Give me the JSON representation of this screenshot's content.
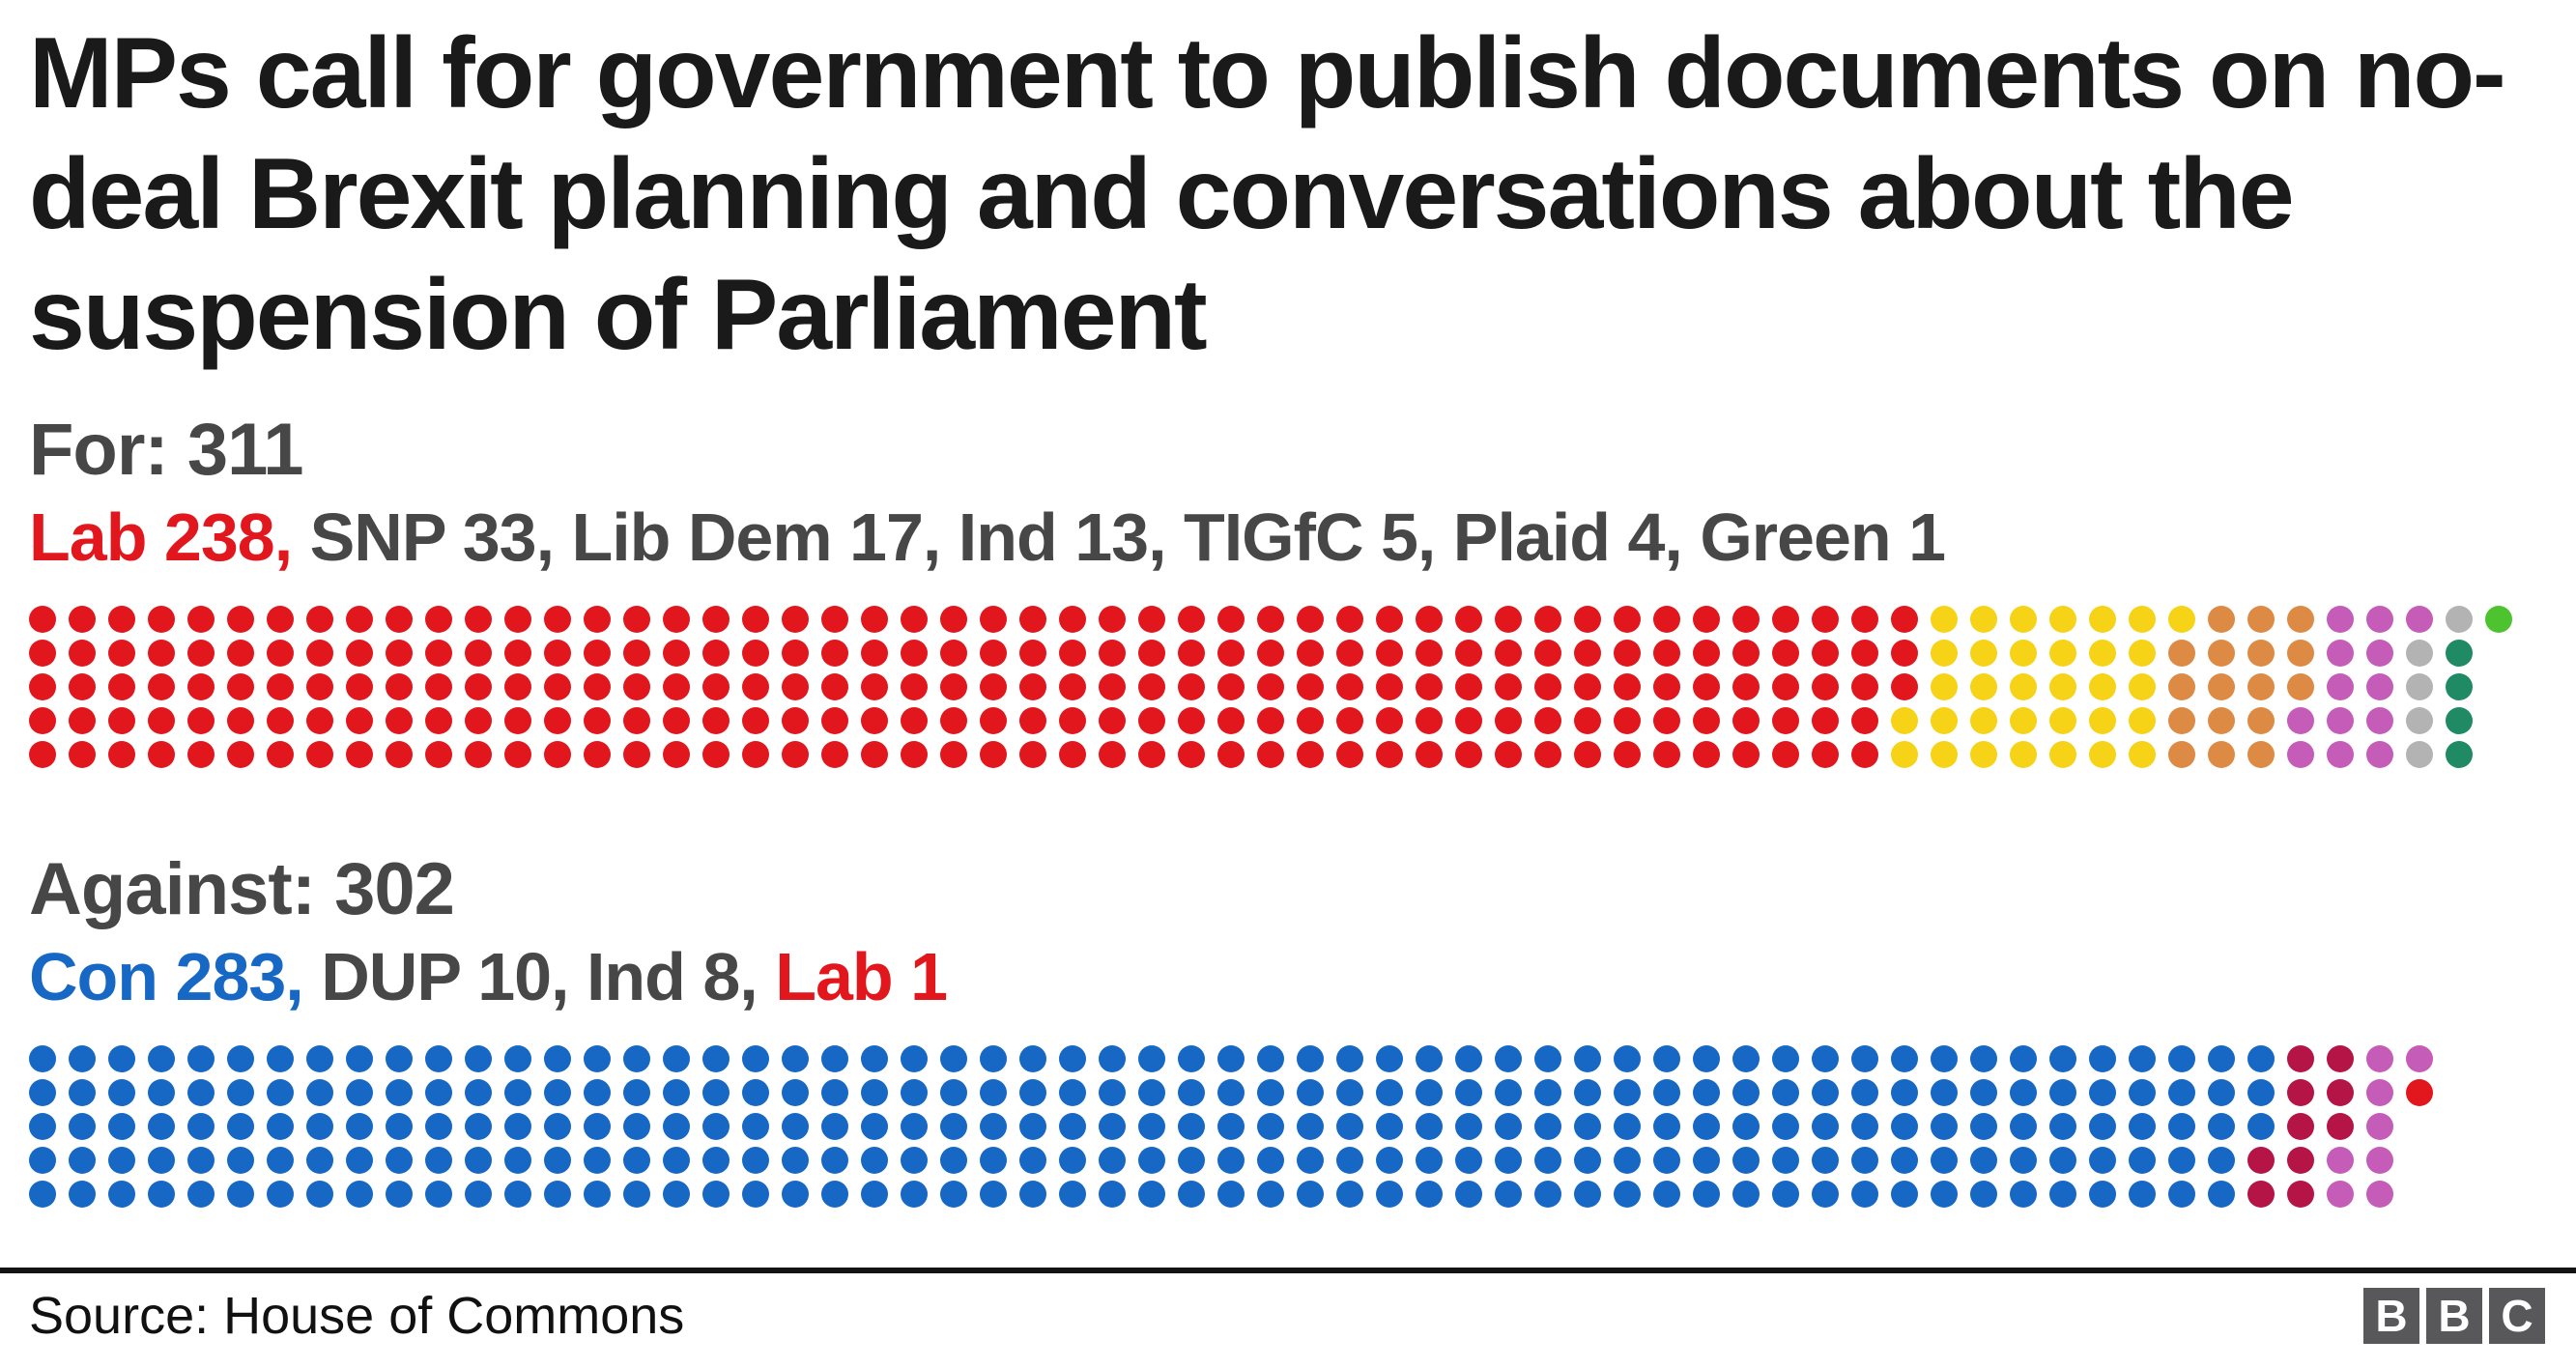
{
  "title": "MPs call for government to publish documents on no-deal Brexit planning and conversations about the suspension of Parliament",
  "sections": [
    {
      "heading": "For: 311",
      "breakdown": [
        {
          "text": "Lab 238,",
          "color": "#e2171d"
        },
        {
          "text": " SNP 33, Lib Dem 17, Ind 13, TIGfC 5, Plaid 4, Green 1",
          "color": "#474747"
        }
      ],
      "parties": [
        {
          "name": "Lab",
          "count": 238,
          "color": "#e2171d"
        },
        {
          "name": "SNP",
          "count": 33,
          "color": "#f6d316"
        },
        {
          "name": "Lib Dem",
          "count": 17,
          "color": "#dd8a45"
        },
        {
          "name": "Ind",
          "count": 13,
          "color": "#c45cb8"
        },
        {
          "name": "TIGfC",
          "count": 5,
          "color": "#b3b3b3"
        },
        {
          "name": "Plaid",
          "count": 4,
          "color": "#1f8a63"
        },
        {
          "name": "Green",
          "count": 1,
          "color": "#4cc32f"
        }
      ]
    },
    {
      "heading": "Against: 302",
      "breakdown": [
        {
          "text": "Con 283,",
          "color": "#1768c5"
        },
        {
          "text": " DUP 10, Ind 8, ",
          "color": "#474747"
        },
        {
          "text": "Lab 1",
          "color": "#e2171d"
        }
      ],
      "parties": [
        {
          "name": "Con",
          "count": 283,
          "color": "#1768c5"
        },
        {
          "name": "DUP",
          "count": 10,
          "color": "#b41546"
        },
        {
          "name": "Ind",
          "count": 8,
          "color": "#c45cb8"
        },
        {
          "name": "Lab",
          "count": 1,
          "color": "#e2171d"
        }
      ]
    }
  ],
  "footer": {
    "source": "Source: House of Commons",
    "logo_letters": [
      "B",
      "B",
      "C"
    ]
  },
  "colors": {
    "title_text": "#1a1a1a",
    "heading_text": "#474747",
    "divider": "#131313",
    "bbc_square": "#58585b"
  },
  "chart_data": {
    "type": "pictogram",
    "title": "MPs call for government to publish documents on no-deal Brexit planning and conversations about the suspension of Parliament",
    "layout": {
      "rows_per_column": 5,
      "fill_order": "column-major, top to bottom",
      "grid_on": false
    },
    "series": [
      {
        "name": "For",
        "total": 311,
        "parties": [
          {
            "party": "Lab",
            "value": 238,
            "color": "#e2171d"
          },
          {
            "party": "SNP",
            "value": 33,
            "color": "#f6d316"
          },
          {
            "party": "Lib Dem",
            "value": 17,
            "color": "#dd8a45"
          },
          {
            "party": "Ind",
            "value": 13,
            "color": "#c45cb8"
          },
          {
            "party": "TIGfC",
            "value": 5,
            "color": "#b3b3b3"
          },
          {
            "party": "Plaid",
            "value": 4,
            "color": "#1f8a63"
          },
          {
            "party": "Green",
            "value": 1,
            "color": "#4cc32f"
          }
        ]
      },
      {
        "name": "Against",
        "total": 302,
        "parties": [
          {
            "party": "Con",
            "value": 283,
            "color": "#1768c5"
          },
          {
            "party": "DUP",
            "value": 10,
            "color": "#b41546"
          },
          {
            "party": "Ind",
            "value": 8,
            "color": "#c45cb8"
          },
          {
            "party": "Lab",
            "value": 1,
            "color": "#e2171d"
          }
        ]
      }
    ],
    "source": "Source: House of Commons"
  }
}
